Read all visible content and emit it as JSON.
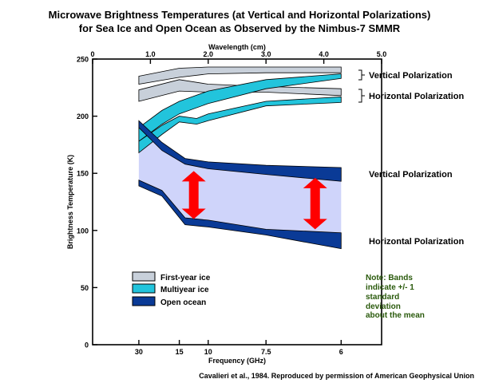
{
  "chart_data": {
    "type": "area",
    "title": "Microwave Brightness Temperatures (at Vertical and Horizontal Polarizations)",
    "subtitle": "for Sea Ice and Open Ocean as Observed by the Nimbus-7 SMMR",
    "xlabel": "Frequency (GHz)",
    "ylabel": "Brightness Temperature (K)",
    "x2label": "Wavelength (cm)",
    "x_axis_unit": "wavelength_cm",
    "xlim": [
      0,
      5.0
    ],
    "ylim": [
      0,
      250
    ],
    "x_ticks": [
      0.8,
      1.5,
      2.0,
      3.0,
      4.3
    ],
    "x_tick_labels": [
      "30",
      "15",
      "10",
      "7.5",
      "6"
    ],
    "x2_ticks": [
      0,
      1.0,
      2.0,
      3.0,
      4.0,
      5.0
    ],
    "x2_tick_labels": [
      "0",
      "1.0",
      "2.0",
      "3.0",
      "4.0",
      "5.0"
    ],
    "y_ticks": [
      0,
      50,
      100,
      150,
      200,
      250
    ],
    "y_tick_labels": [
      "0",
      "50",
      "100",
      "150",
      "200",
      "250"
    ],
    "grid": false,
    "series": [
      {
        "key": "fy_v",
        "band": "First-year ice",
        "polarization": "Vertical",
        "x": [
          0.8,
          1.5,
          2.0,
          3.0,
          4.3
        ],
        "upper": [
          235,
          242,
          243,
          243,
          243
        ],
        "lower": [
          228,
          234,
          237,
          238,
          238
        ],
        "color": "#c8d0da"
      },
      {
        "key": "fy_h",
        "band": "First-year ice",
        "polarization": "Horizontal",
        "x": [
          0.8,
          1.5,
          2.0,
          3.0,
          4.3
        ],
        "upper": [
          223,
          232,
          228,
          226,
          224
        ],
        "lower": [
          213,
          222,
          221,
          221,
          218
        ],
        "color": "#c8d0da"
      },
      {
        "key": "my_v",
        "band": "Multiyear ice",
        "polarization": "Vertical",
        "x": [
          0.8,
          1.2,
          1.5,
          2.0,
          3.0,
          4.3
        ],
        "upper": [
          190,
          205,
          213,
          222,
          232,
          237
        ],
        "lower": [
          178,
          193,
          202,
          211,
          224,
          233
        ],
        "color": "#22c4dc"
      },
      {
        "key": "my_h",
        "band": "Multiyear ice",
        "polarization": "Horizontal",
        "x": [
          0.8,
          1.2,
          1.5,
          1.8,
          2.0,
          3.0,
          4.3
        ],
        "upper": [
          178,
          192,
          200,
          198,
          202,
          213,
          217
        ],
        "lower": [
          168,
          184,
          195,
          193,
          196,
          209,
          212
        ],
        "color": "#22c4dc"
      },
      {
        "key": "oo_v",
        "band": "Open ocean",
        "polarization": "Vertical",
        "x": [
          0.8,
          1.2,
          1.6,
          2.0,
          3.0,
          4.3
        ],
        "upper": [
          196,
          177,
          163,
          160,
          157,
          155
        ],
        "lower": [
          190,
          170,
          158,
          154,
          149,
          143
        ],
        "color": "#0a3a96"
      },
      {
        "key": "oo_h",
        "band": "Open ocean",
        "polarization": "Horizontal",
        "x": [
          0.8,
          1.2,
          1.6,
          2.0,
          3.0,
          4.3
        ],
        "upper": [
          144,
          135,
          111,
          109,
          101,
          98
        ],
        "lower": [
          139,
          130,
          105,
          103,
          96,
          84
        ],
        "color": "#0a3a96"
      }
    ],
    "shaded_band": {
      "x": [
        0.8,
        1.2,
        1.6,
        2.0,
        3.0,
        4.3
      ],
      "upper": [
        190,
        170,
        158,
        154,
        149,
        143
      ],
      "lower": [
        144,
        135,
        111,
        109,
        101,
        98
      ],
      "color": "#cfd4fa"
    },
    "legend": {
      "placement": "bottom-left",
      "items": [
        {
          "label": "First-year ice",
          "color": "#c8d0da"
        },
        {
          "label": "Multiyear ice",
          "color": "#22c4dc"
        },
        {
          "label": "Open ocean",
          "color": "#0a3a96"
        }
      ]
    },
    "annotations": {
      "vp_top": "Vertical Polarization",
      "hp_top": "Horizontal Polarization",
      "vp_mid": "Vertical Polarization",
      "hp_bottom": "Horizontal Polarization",
      "note": [
        "Note: Bands",
        "indicate +/- 1",
        "standard",
        "deviation",
        "about the mean"
      ],
      "note_color": "#2a5a0c"
    },
    "arrows": [
      {
        "x": 1.75,
        "from": 110,
        "to": 152,
        "color": "#ff0000"
      },
      {
        "x": 3.85,
        "from": 101,
        "to": 146,
        "color": "#ff0000"
      }
    ]
  },
  "credit": "Cavalieri et al., 1984. Reproduced by permission of American Geophysical Union"
}
